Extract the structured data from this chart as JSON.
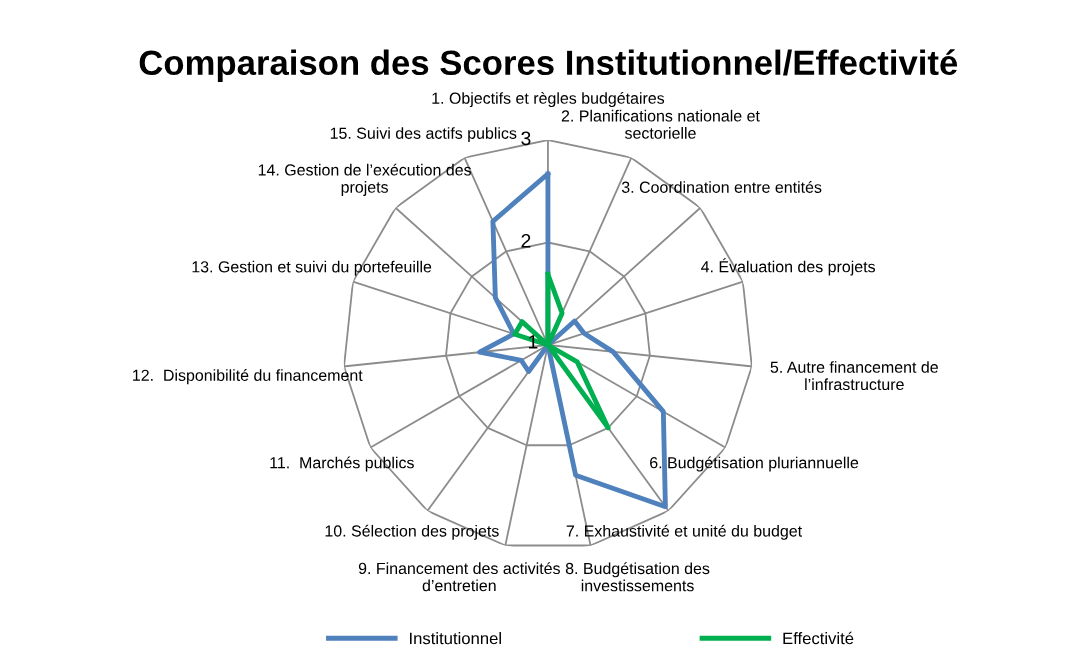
{
  "chart_data": {
    "type": "radar",
    "title": "Comparaison des Scores Institutionnel/Effectivité",
    "categories": [
      "1. Objectifs et règles budgétaires",
      "2. Planifications nationale et\nsectorielle",
      "3. Coordination entre entités",
      "4. Évaluation des projets",
      "5. Autre financement de\nl’infrastructure",
      "6. Budgétisation pluriannuelle",
      "7. Exhaustivité et unité du budget",
      "8. Budgétisation des\ninvestissements",
      "9. Financement des activités\nd’entretien",
      "10. Sélection des projets",
      "11.  Marchés publics",
      "12.  Disponibilité du financement",
      "13. Gestion et suivi du portefeuille",
      "14. Gestion de l’exécution des\nprojets",
      "15. Suivi des actifs publics"
    ],
    "series": [
      {
        "name": "Institutionnel",
        "color": "#4f81bd",
        "values": [
          2.67,
          1,
          1.35,
          1.37,
          1.64,
          2.3,
          2.95,
          2.3,
          1,
          1.32,
          1.3,
          1.67,
          1.35,
          1.69,
          2.32
        ]
      },
      {
        "name": "Effectivité",
        "color": "#00b050",
        "values": [
          1.69,
          1.34,
          1,
          1,
          1,
          1.33,
          2.0,
          1,
          1,
          1,
          1,
          1,
          1.34,
          1.34,
          1
        ]
      }
    ],
    "ylim": [
      1,
      3
    ],
    "yticks": [
      1,
      2,
      3
    ],
    "grid": true,
    "legend": "bottom",
    "marker": "none",
    "line_style": "solid"
  }
}
